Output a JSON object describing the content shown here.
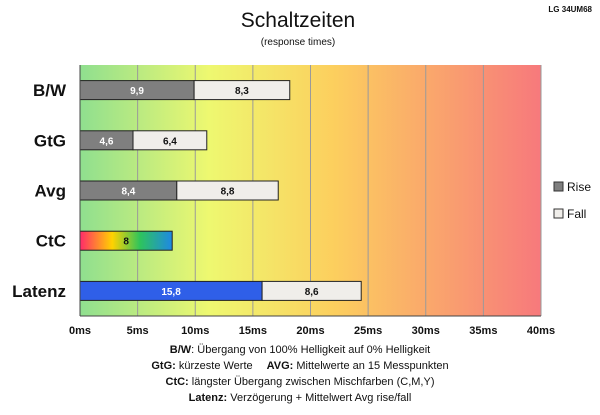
{
  "chart_data": {
    "type": "bar",
    "orientation": "horizontal",
    "stacked": true,
    "title": "Schaltzeiten",
    "subtitle": "(response times)",
    "corner_label": "LG 34UM68",
    "categories": [
      "B/W",
      "GtG",
      "Avg",
      "CtC",
      "Latenz"
    ],
    "series": [
      {
        "name": "Rise",
        "values": [
          9.9,
          4.6,
          8.4,
          8,
          15.8
        ],
        "labels": [
          "9,9",
          "4,6",
          "8,4",
          "8",
          "15,8"
        ]
      },
      {
        "name": "Fall",
        "values": [
          8.3,
          6.4,
          8.8,
          null,
          8.6
        ],
        "labels": [
          "8,3",
          "6,4",
          "8,8",
          "",
          "8,6"
        ]
      }
    ],
    "xlim": [
      0,
      40
    ],
    "xticks": [
      0,
      5,
      10,
      15,
      20,
      25,
      30,
      35,
      40
    ],
    "xtick_labels": [
      "0ms",
      "5ms",
      "10ms",
      "15ms",
      "20ms",
      "25ms",
      "30ms",
      "35ms",
      "40ms"
    ],
    "grid": true,
    "legend_position": "right",
    "background_gradient": [
      "#8fdf8f",
      "#eef870",
      "#fccf5e",
      "#f7797c"
    ],
    "colors": {
      "rise": "#7f7f7f",
      "fall": "#f0eeea",
      "ctc_rainbow": [
        "#ff2a6a",
        "#ffd200",
        "#2ec45c",
        "#1e88e5"
      ],
      "latenz_rise": "#2f5fe8"
    }
  },
  "footer": {
    "line1": {
      "key": "B/W",
      "text": ":  Übergang von 100% Helligkeit auf 0% Helligkeit"
    },
    "line2a": {
      "key": "GtG:",
      "text": " kürzeste  Werte"
    },
    "line2b": {
      "key": "AVG:",
      "text": " Mittelwerte  an 15 Messpunkten"
    },
    "line3": {
      "key": "CtC:",
      "text": " längster Übergang  zwischen Mischfarben  (C,M,Y)"
    },
    "line4": {
      "key": "Latenz:",
      "text": " Verzögerung  + Mittelwert  Avg rise/fall"
    }
  }
}
